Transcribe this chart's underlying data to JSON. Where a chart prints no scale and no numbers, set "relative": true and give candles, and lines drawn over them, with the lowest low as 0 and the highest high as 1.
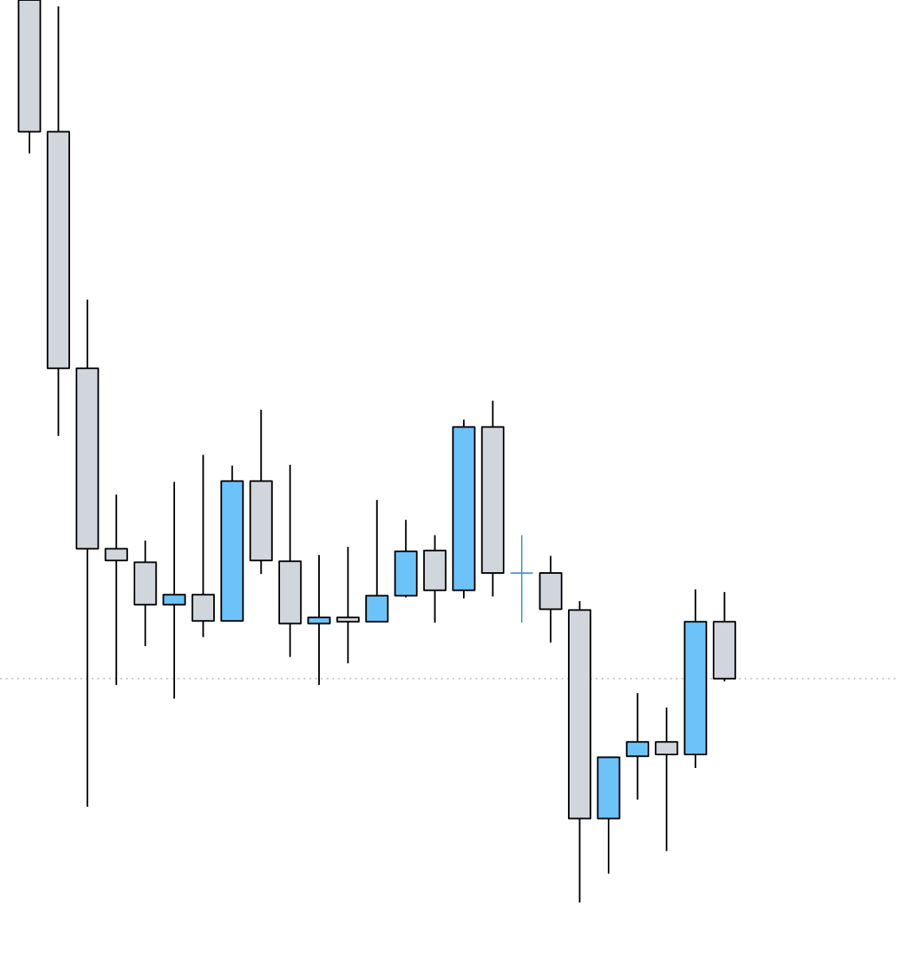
{
  "chart_data": {
    "type": "candlestick",
    "relative": true,
    "categories": [
      null,
      null,
      null,
      null,
      null,
      null,
      null,
      null,
      null,
      null,
      null,
      null,
      null,
      null,
      null,
      null,
      null,
      null,
      null,
      null,
      null,
      null,
      null,
      null,
      null
    ],
    "ohlc": [
      [
        1.0,
        1.0,
        0.83,
        0.854
      ],
      [
        0.854,
        0.993,
        0.517,
        0.592
      ],
      [
        0.592,
        0.668,
        0.106,
        0.392
      ],
      [
        0.392,
        0.452,
        0.241,
        0.379
      ],
      [
        0.377,
        0.401,
        0.284,
        0.33
      ],
      [
        0.33,
        0.466,
        0.226,
        0.341
      ],
      [
        0.341,
        0.496,
        0.294,
        0.312
      ],
      [
        0.312,
        0.484,
        0.312,
        0.467
      ],
      [
        0.467,
        0.546,
        0.364,
        0.379
      ],
      [
        0.378,
        0.485,
        0.272,
        0.309
      ],
      [
        0.309,
        0.385,
        0.241,
        0.316
      ],
      [
        0.316,
        0.394,
        0.265,
        0.311
      ],
      [
        0.311,
        0.446,
        0.311,
        0.34
      ],
      [
        0.34,
        0.424,
        0.338,
        0.389
      ],
      [
        0.39,
        0.407,
        0.31,
        0.346
      ],
      [
        0.346,
        0.535,
        0.337,
        0.527
      ],
      [
        0.527,
        0.556,
        0.339,
        0.365
      ],
      [
        0.365,
        0.407,
        0.31,
        0.365
      ],
      [
        0.365,
        0.384,
        0.288,
        0.325
      ],
      [
        0.324,
        0.334,
        0.0,
        0.093
      ],
      [
        0.093,
        0.161,
        0.032,
        0.161
      ],
      [
        0.162,
        0.232,
        0.114,
        0.178
      ],
      [
        0.178,
        0.216,
        0.057,
        0.164
      ],
      [
        0.164,
        0.347,
        0.149,
        0.311
      ],
      [
        0.311,
        0.344,
        0.245,
        0.248
      ]
    ],
    "colors": [
      "#d1d5dc",
      "#d1d5dc",
      "#d1d5dc",
      "#d1d5dc",
      "#d1d5dc",
      "#6cc3f9",
      "#d1d5dc",
      "#6cc3f9",
      "#d1d5dc",
      "#d1d5dc",
      "#6cc3f9",
      "#d1d5dc",
      "#6cc3f9",
      "#6cc3f9",
      "#d1d5dc",
      "#6cc3f9",
      "#d1d5dc",
      "#3d8fd6",
      "#d1d5dc",
      "#d1d5dc",
      "#6cc3f9",
      "#6cc3f9",
      "#d1d5dc",
      "#6cc3f9",
      "#d1d5dc"
    ],
    "ref_lines": [
      {
        "axis": "y",
        "value": 0.248,
        "color": "#c8c8c8",
        "line_style": "dotted"
      }
    ]
  }
}
